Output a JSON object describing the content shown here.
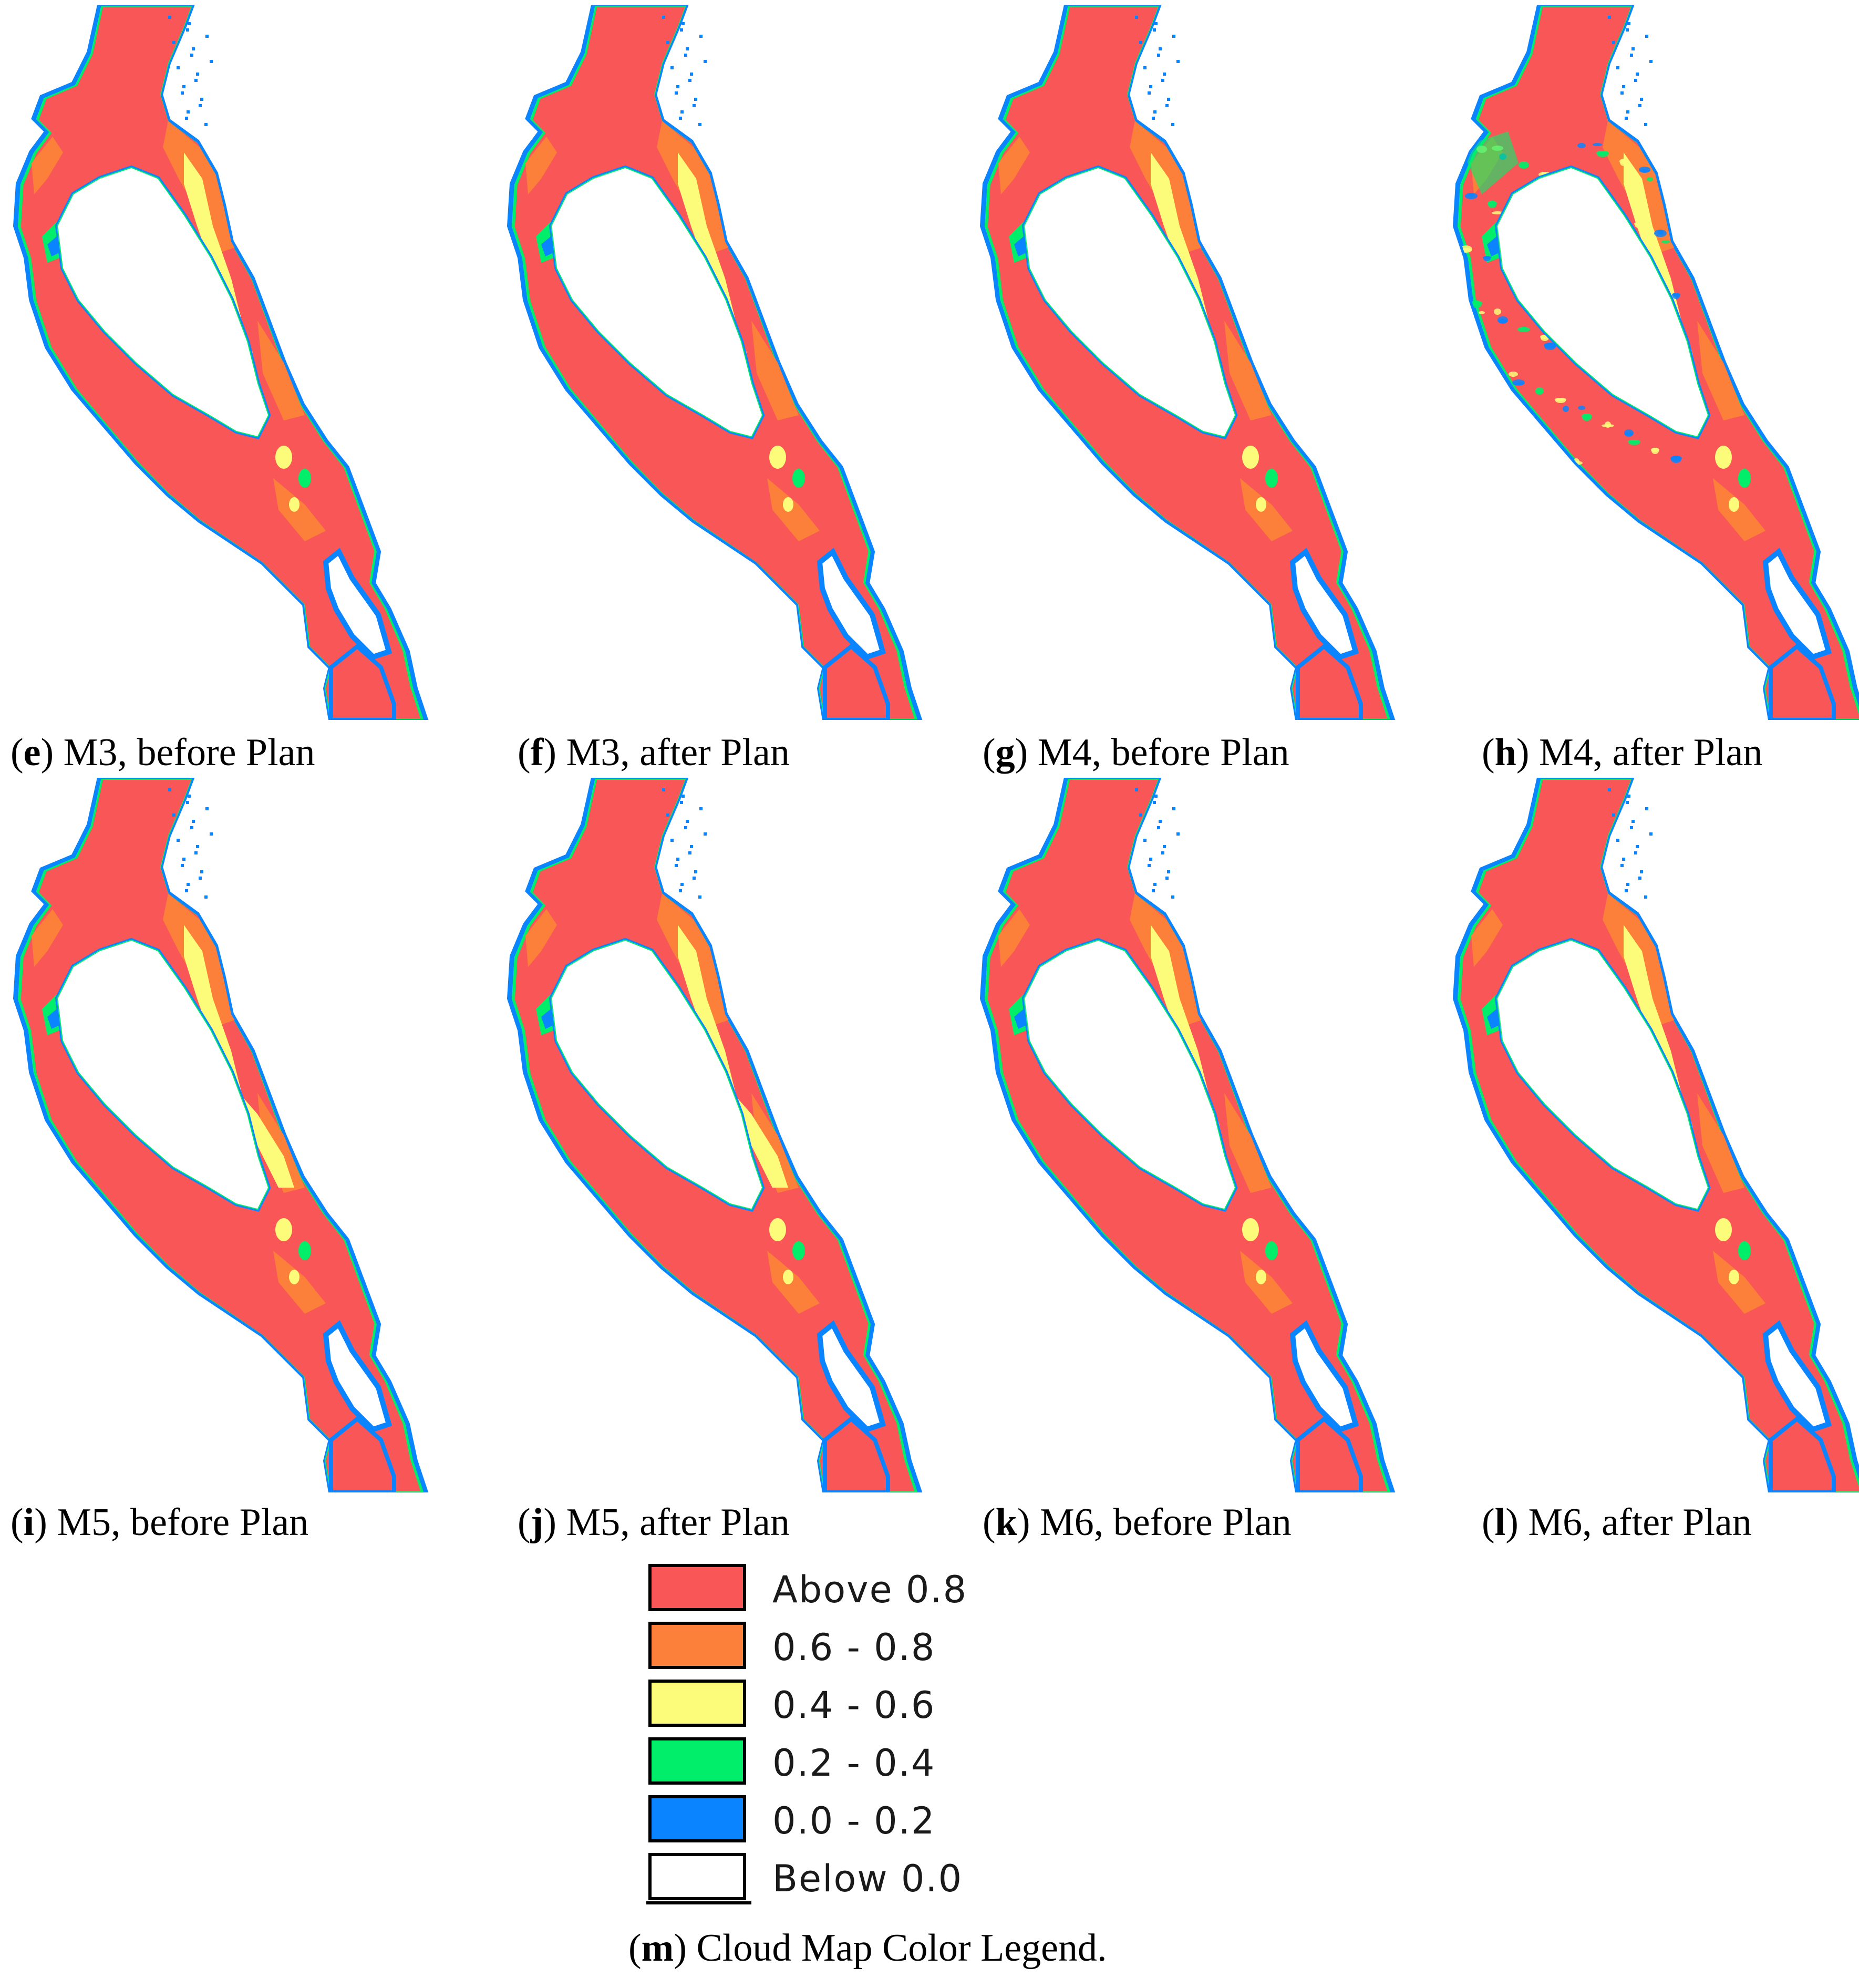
{
  "panels": [
    {
      "id": "e",
      "caption_letter": "e",
      "caption_text": ") M3, before Plan"
    },
    {
      "id": "f",
      "caption_letter": "f",
      "caption_text": ") M3, after Plan"
    },
    {
      "id": "g",
      "caption_letter": "g",
      "caption_text": ") M4, before Plan"
    },
    {
      "id": "h",
      "caption_letter": "h",
      "caption_text": ") M4, after Plan"
    },
    {
      "id": "i",
      "caption_letter": "i",
      "caption_text": ") M5, before Plan"
    },
    {
      "id": "j",
      "caption_letter": "j",
      "caption_text": ") M5, after Plan"
    },
    {
      "id": "k",
      "caption_letter": "k",
      "caption_text": ") M6, before Plan"
    },
    {
      "id": "l",
      "caption_letter": "l",
      "caption_text": ") M6, after Plan"
    }
  ],
  "legend": {
    "caption_letter": "m",
    "caption_text": ") Cloud Map Color Legend.",
    "items": [
      {
        "label": "Above 0.8",
        "color": "#f95757"
      },
      {
        "label": "0.6 - 0.8",
        "color": "#fc7f3a"
      },
      {
        "label": "0.4 - 0.6",
        "color": "#fcfc7a"
      },
      {
        "label": "0.2 - 0.4",
        "color": "#00ee6a"
      },
      {
        "label": "0.0 - 0.2",
        "color": "#0a84ff"
      },
      {
        "label": "Below 0.0",
        "color": "#ffffff"
      }
    ]
  }
}
